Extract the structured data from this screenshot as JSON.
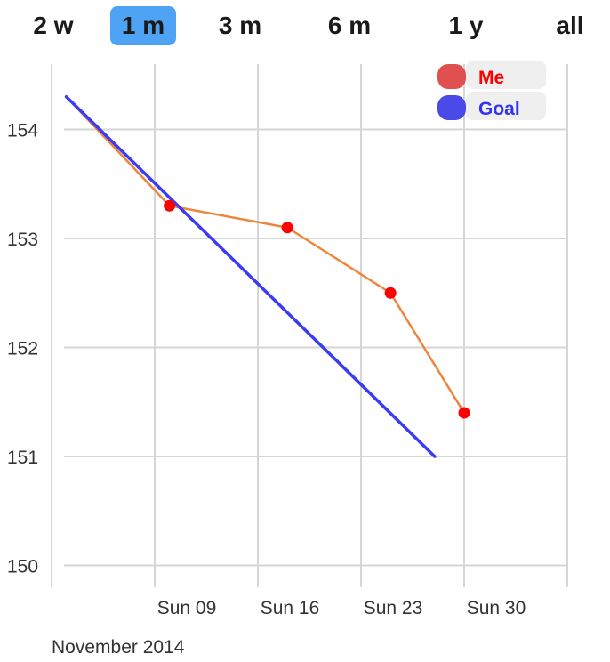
{
  "range_selector": {
    "options": [
      "2 w",
      "1 m",
      "3 m",
      "6 m",
      "1 y",
      "all"
    ],
    "selected": "1 m",
    "active_color": "#4ea3f5"
  },
  "chart_data": {
    "type": "line",
    "x_axis_caption": "November 2014",
    "x_ticks": [
      "2014-11-09",
      "2014-11-16",
      "2014-11-23",
      "2014-11-30"
    ],
    "x_tick_labels": [
      "Sun 09",
      "Sun 16",
      "Sun 23",
      "Sun 30"
    ],
    "xlim": [
      "2014-11-02",
      "2014-12-07"
    ],
    "ylim": [
      149.8,
      154.6
    ],
    "y_ticks": [
      150,
      151,
      152,
      153,
      154
    ],
    "grid": true,
    "legend_position": "top-right",
    "series": [
      {
        "name": "Me",
        "line_color": "#f0843c",
        "marker_color": "#ff0000",
        "legend_color": "#e05050",
        "label_color": "#ff0000",
        "points": [
          {
            "x": "2014-11-03",
            "y": 154.3
          },
          {
            "x": "2014-11-10",
            "y": 153.3
          },
          {
            "x": "2014-11-18",
            "y": 153.1
          },
          {
            "x": "2014-11-25",
            "y": 152.5
          },
          {
            "x": "2014-11-30",
            "y": 151.4
          }
        ]
      },
      {
        "name": "Goal",
        "line_color": "#3b3bf5",
        "legend_color": "#4a4ae8",
        "label_color": "#3333ee",
        "points": [
          {
            "x": "2014-11-03",
            "y": 154.3
          },
          {
            "x": "2014-11-28",
            "y": 151.0
          }
        ]
      }
    ]
  }
}
